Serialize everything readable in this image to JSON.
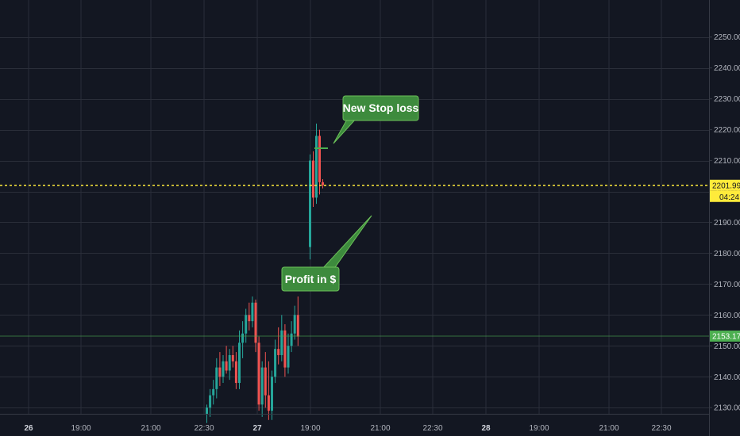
{
  "chart_data": {
    "type": "candlestick",
    "x_labels": [
      "26",
      "19:00",
      "21:00",
      "22:30",
      "27",
      "19:00",
      "21:00",
      "22:30",
      "28",
      "19:00",
      "21:00",
      "22:30"
    ],
    "bold_x_labels": [
      "26",
      "27",
      "28"
    ],
    "y_ticks": [
      2130,
      2140,
      2150,
      2160,
      2170,
      2180,
      2190,
      2200,
      2210,
      2220,
      2230,
      2240,
      2250
    ],
    "y_tick_labels": [
      "2130.00",
      "2140.00",
      "2150.00",
      "2160.00",
      "2170.00",
      "2180.00",
      "2190.00",
      "2200.00",
      "2210.00",
      "2220.00",
      "2230.00",
      "2240.00",
      "2250.00"
    ],
    "ylim": [
      2128,
      2262
    ],
    "grid": true,
    "colors": {
      "background": "#131722",
      "grid": "#2a2e39",
      "up": "#26a69a",
      "down": "#ef5350",
      "price_line": "#ffeb3b",
      "callout": "#3d8b3d",
      "callout_border": "#6bbf59",
      "stop_line": "#4caf50",
      "last_tag": "#4caf50"
    },
    "candles": [
      {
        "o": 2128,
        "h": 2131,
        "l": 2125,
        "c": 2130
      },
      {
        "o": 2130,
        "h": 2136,
        "l": 2127,
        "c": 2134
      },
      {
        "o": 2134,
        "h": 2139,
        "l": 2131,
        "c": 2136
      },
      {
        "o": 2136,
        "h": 2146,
        "l": 2133,
        "c": 2143
      },
      {
        "o": 2143,
        "h": 2148,
        "l": 2137,
        "c": 2140
      },
      {
        "o": 2140,
        "h": 2147,
        "l": 2138,
        "c": 2145
      },
      {
        "o": 2145,
        "h": 2150,
        "l": 2141,
        "c": 2142
      },
      {
        "o": 2142,
        "h": 2149,
        "l": 2139,
        "c": 2147
      },
      {
        "o": 2147,
        "h": 2150,
        "l": 2143,
        "c": 2145
      },
      {
        "o": 2145,
        "h": 2148,
        "l": 2136,
        "c": 2138
      },
      {
        "o": 2138,
        "h": 2155,
        "l": 2136,
        "c": 2151
      },
      {
        "o": 2151,
        "h": 2158,
        "l": 2146,
        "c": 2154
      },
      {
        "o": 2154,
        "h": 2162,
        "l": 2151,
        "c": 2160
      },
      {
        "o": 2160,
        "h": 2164,
        "l": 2155,
        "c": 2158
      },
      {
        "o": 2158,
        "h": 2166,
        "l": 2156,
        "c": 2164
      },
      {
        "o": 2164,
        "h": 2165,
        "l": 2148,
        "c": 2151
      },
      {
        "o": 2151,
        "h": 2153,
        "l": 2129,
        "c": 2131
      },
      {
        "o": 2131,
        "h": 2145,
        "l": 2127,
        "c": 2143
      },
      {
        "o": 2143,
        "h": 2148,
        "l": 2130,
        "c": 2134
      },
      {
        "o": 2134,
        "h": 2145,
        "l": 2126,
        "c": 2129
      },
      {
        "o": 2129,
        "h": 2142,
        "l": 2126,
        "c": 2140
      },
      {
        "o": 2140,
        "h": 2152,
        "l": 2138,
        "c": 2149
      },
      {
        "o": 2149,
        "h": 2156,
        "l": 2144,
        "c": 2147
      },
      {
        "o": 2147,
        "h": 2160,
        "l": 2145,
        "c": 2155
      },
      {
        "o": 2155,
        "h": 2157,
        "l": 2140,
        "c": 2143
      },
      {
        "o": 2143,
        "h": 2154,
        "l": 2141,
        "c": 2150
      },
      {
        "o": 2150,
        "h": 2158,
        "l": 2148,
        "c": 2154
      },
      {
        "o": 2154,
        "h": 2163,
        "l": 2152,
        "c": 2160
      },
      {
        "o": 2160,
        "h": 2166,
        "l": 2150,
        "c": 2153
      },
      {
        "o": 2182,
        "h": 2212,
        "l": 2178,
        "c": 2210
      },
      {
        "o": 2210,
        "h": 2213,
        "l": 2195,
        "c": 2198
      },
      {
        "o": 2198,
        "h": 2222,
        "l": 2196,
        "c": 2218
      },
      {
        "o": 2218,
        "h": 2220,
        "l": 2199,
        "c": 2203
      },
      {
        "o": 2203,
        "h": 2204,
        "l": 2201,
        "c": 2202
      }
    ],
    "price_line": {
      "value": 2201.99,
      "label": "2201.99",
      "countdown": "04:24"
    },
    "last_tag": {
      "value": 2153.17,
      "label": "2153.17"
    },
    "stop_line": {
      "value": 2214
    },
    "annotations": [
      {
        "text": "New Stop loss"
      },
      {
        "text": "Profit in $"
      }
    ]
  }
}
